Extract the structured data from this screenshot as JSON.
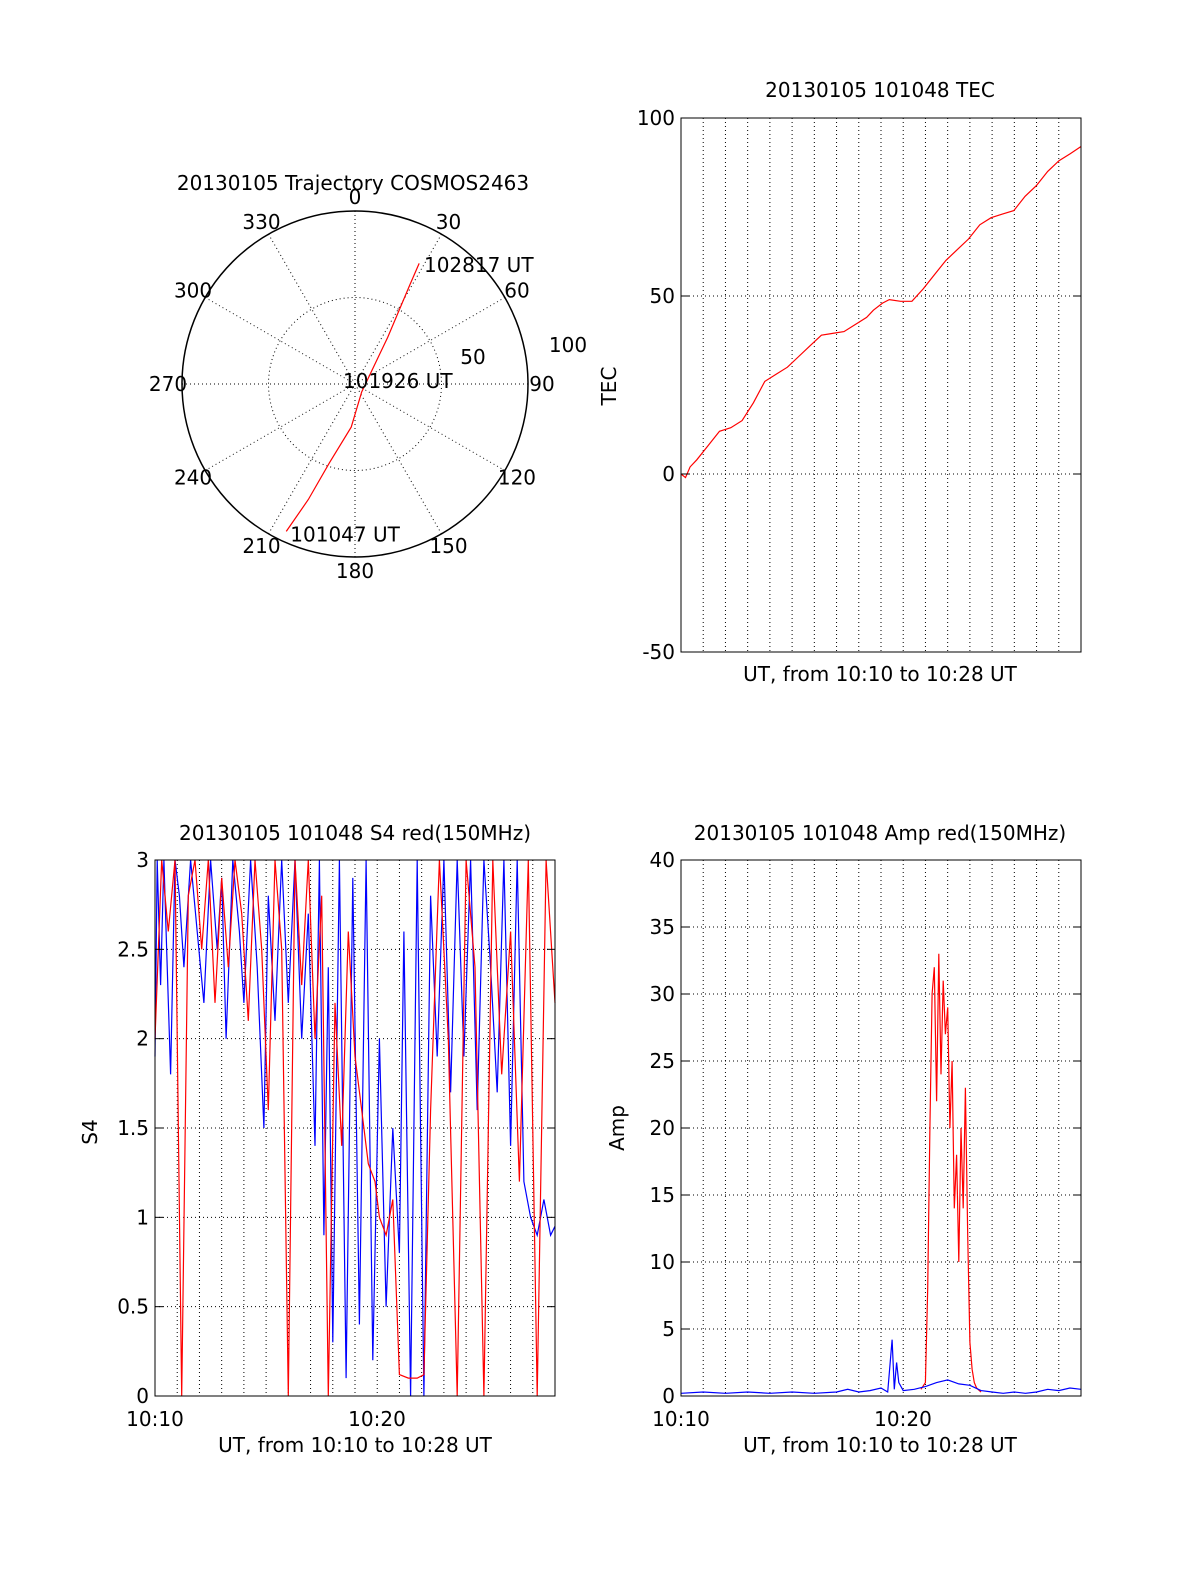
{
  "chart_data": [
    {
      "id": "trajectory",
      "type": "polar",
      "title": "20130105 Trajectory COSMOS2463",
      "angle_labels": [
        "0",
        "30",
        "60",
        "90",
        "120",
        "150",
        "180",
        "210",
        "240",
        "270",
        "300",
        "330"
      ],
      "radius_labels": [
        "50",
        "100"
      ],
      "rlim": [
        0,
        100
      ],
      "series": [
        {
          "color": "#ff0000",
          "points": [
            [
              205,
              94
            ],
            [
              202,
              72
            ],
            [
              198,
              48
            ],
            [
              185,
              25
            ],
            [
              140,
              6
            ],
            [
              35,
              33
            ],
            [
              29,
              65
            ],
            [
              28,
              79
            ]
          ]
        }
      ],
      "annotations": [
        {
          "text": "102817 UT",
          "az": 28,
          "r": 80
        },
        {
          "text": "101926 UT",
          "az": 0,
          "r": 0
        },
        {
          "text": "101047 UT",
          "az": 205,
          "r": 94
        }
      ]
    },
    {
      "id": "tec",
      "type": "line",
      "title": "20130105 101048 TEC",
      "xlabel": "UT, from 10:10 to 10:28 UT",
      "ylabel": "TEC",
      "xlim": [
        10.8,
        28.47
      ],
      "ylim": [
        -50,
        100
      ],
      "yticks": [
        "-50",
        "0",
        "50",
        "100"
      ],
      "grid": true,
      "series": [
        {
          "color": "#ff0000",
          "x": [
            10.8,
            11.0,
            11.2,
            11.5,
            12.0,
            12.5,
            13.0,
            13.5,
            14.0,
            14.5,
            15.0,
            15.5,
            16.0,
            16.5,
            17.0,
            17.5,
            18.0,
            18.5,
            19.0,
            19.3,
            19.7,
            20.0,
            20.5,
            21.0,
            21.5,
            22.0,
            22.5,
            23.0,
            23.5,
            24.0,
            24.5,
            25.0,
            25.5,
            26.0,
            26.5,
            27.0,
            27.5,
            28.0,
            28.47
          ],
          "values": [
            0,
            -1,
            2,
            4,
            8,
            12,
            13,
            15,
            20,
            26,
            28,
            30,
            33,
            36,
            39,
            39.5,
            40,
            42,
            44,
            46,
            48,
            49,
            48.5,
            48.5,
            52,
            56,
            60,
            63,
            66,
            70,
            72,
            73,
            74,
            78,
            81,
            85,
            88,
            90,
            92
          ]
        }
      ]
    },
    {
      "id": "s4",
      "type": "line",
      "title": "20130105 101048 S4 red(150MHz)",
      "xlabel": "UT, from 10:10 to 10:28 UT",
      "ylabel": "S4",
      "xlim": [
        10.0,
        28.0
      ],
      "ylim": [
        0,
        3
      ],
      "xticks": [
        "10:10",
        "10:20"
      ],
      "yticks": [
        "0",
        "0.5",
        "1",
        "1.5",
        "2",
        "2.5",
        "3"
      ],
      "grid": true,
      "series": [
        {
          "color": "#0000ff",
          "x": [
            10.0,
            10.1,
            10.25,
            10.4,
            10.5,
            10.7,
            10.9,
            11.1,
            11.3,
            11.6,
            11.9,
            12.2,
            12.5,
            12.8,
            13.0,
            13.2,
            13.5,
            13.8,
            14.0,
            14.3,
            14.6,
            14.9,
            15.1,
            15.4,
            15.7,
            16.0,
            16.3,
            16.6,
            16.9,
            17.2,
            17.4,
            17.6,
            17.8,
            18.0,
            18.3,
            18.6,
            18.9,
            19.2,
            19.5,
            19.8,
            20.1,
            20.4,
            20.7,
            21.0,
            21.2,
            21.5,
            21.8,
            22.1,
            22.4,
            22.7,
            23.0,
            23.3,
            23.6,
            23.9,
            24.2,
            24.5,
            24.8,
            25.1,
            25.4,
            25.7,
            26.0,
            26.3,
            26.6,
            26.9,
            27.2,
            27.5,
            27.8,
            28.0
          ],
          "values": [
            1.9,
            3.0,
            2.3,
            3.0,
            2.6,
            1.8,
            3.0,
            2.8,
            2.4,
            3.0,
            2.6,
            2.2,
            3.0,
            2.5,
            2.9,
            2.0,
            3.0,
            2.6,
            2.2,
            3.0,
            2.4,
            1.5,
            2.8,
            2.1,
            3.0,
            2.2,
            3.0,
            2.0,
            2.7,
            1.4,
            3.0,
            0.9,
            2.4,
            0.3,
            3.0,
            0.1,
            2.9,
            0.4,
            3.0,
            0.2,
            2.0,
            0.5,
            1.5,
            0.8,
            2.6,
            0.0,
            3.0,
            0.0,
            2.8,
            1.9,
            3.0,
            1.7,
            3.0,
            1.9,
            3.0,
            1.6,
            3.0,
            2.4,
            1.7,
            3.0,
            1.4,
            3.0,
            1.2,
            1.0,
            0.9,
            1.1,
            0.9,
            0.95
          ]
        },
        {
          "color": "#ff0000",
          "x": [
            10.0,
            10.3,
            10.6,
            10.9,
            11.2,
            11.5,
            11.8,
            12.1,
            12.4,
            12.7,
            13.0,
            13.3,
            13.6,
            13.9,
            14.2,
            14.5,
            14.8,
            15.1,
            15.4,
            15.7,
            16.0,
            16.3,
            16.6,
            16.9,
            17.2,
            17.5,
            17.8,
            18.1,
            18.4,
            18.7,
            19.0,
            19.3,
            19.6,
            19.9,
            20.1,
            20.4,
            20.7,
            21.0,
            21.4,
            21.8,
            22.1,
            22.4,
            22.8,
            23.2,
            23.6,
            24.0,
            24.4,
            24.8,
            25.2,
            25.6,
            26.0,
            26.4,
            26.8,
            27.2,
            27.6,
            28.0
          ],
          "values": [
            2.0,
            3.0,
            2.6,
            3.0,
            0.0,
            2.8,
            3.0,
            2.5,
            3.0,
            2.2,
            2.9,
            2.4,
            3.0,
            2.7,
            2.1,
            3.0,
            2.5,
            1.6,
            3.0,
            2.5,
            0.0,
            3.0,
            2.3,
            3.0,
            2.0,
            2.8,
            0.0,
            2.2,
            1.4,
            2.6,
            1.9,
            1.6,
            1.3,
            1.2,
            1.0,
            0.9,
            1.1,
            0.12,
            0.1,
            0.1,
            0.12,
            1.6,
            3.0,
            2.0,
            0.0,
            3.0,
            2.4,
            0.0,
            3.0,
            1.8,
            2.6,
            1.2,
            3.0,
            0.0,
            3.0,
            2.2
          ]
        }
      ]
    },
    {
      "id": "amp",
      "type": "line",
      "title": "20130105 101048 Amp red(150MHz)",
      "xlabel": "UT, from 10:10 to 10:28 UT",
      "ylabel": "Amp",
      "xlim": [
        10.0,
        28.0
      ],
      "ylim": [
        0,
        40
      ],
      "xticks": [
        "10:10",
        "10:20"
      ],
      "yticks": [
        "0",
        "5",
        "10",
        "15",
        "20",
        "25",
        "30",
        "35",
        "40"
      ],
      "grid": true,
      "series": [
        {
          "color": "#ff0000",
          "x": [
            20.8,
            21.0,
            21.1,
            21.2,
            21.3,
            21.4,
            21.5,
            21.6,
            21.7,
            21.8,
            21.9,
            22.0,
            22.1,
            22.2,
            22.3,
            22.4,
            22.5,
            22.6,
            22.7,
            22.8,
            22.9,
            23.0,
            23.1,
            23.2,
            23.3,
            23.5
          ],
          "values": [
            0.5,
            1.0,
            8.0,
            20.0,
            30.0,
            32.0,
            22.0,
            33.0,
            24.0,
            31.0,
            27.0,
            29.0,
            20.0,
            25.0,
            14.0,
            18.0,
            10.0,
            20.0,
            14.0,
            23.0,
            12.0,
            4.0,
            2.0,
            1.0,
            0.6,
            0.3
          ]
        },
        {
          "color": "#0000ff",
          "x": [
            10.0,
            11.0,
            12.0,
            13.0,
            14.0,
            15.0,
            16.0,
            17.0,
            17.5,
            18.0,
            18.5,
            19.0,
            19.3,
            19.5,
            19.6,
            19.7,
            19.8,
            20.0,
            20.5,
            21.0,
            21.5,
            22.0,
            22.5,
            23.0,
            23.5,
            24.0,
            24.5,
            25.0,
            25.5,
            26.0,
            26.5,
            27.0,
            27.5,
            28.0
          ],
          "values": [
            0.2,
            0.3,
            0.2,
            0.3,
            0.2,
            0.3,
            0.2,
            0.3,
            0.5,
            0.3,
            0.4,
            0.6,
            0.3,
            4.2,
            0.5,
            2.5,
            1.0,
            0.4,
            0.5,
            0.7,
            1.0,
            1.2,
            0.9,
            0.8,
            0.4,
            0.3,
            0.2,
            0.3,
            0.2,
            0.3,
            0.5,
            0.4,
            0.6,
            0.5
          ]
        }
      ]
    }
  ]
}
